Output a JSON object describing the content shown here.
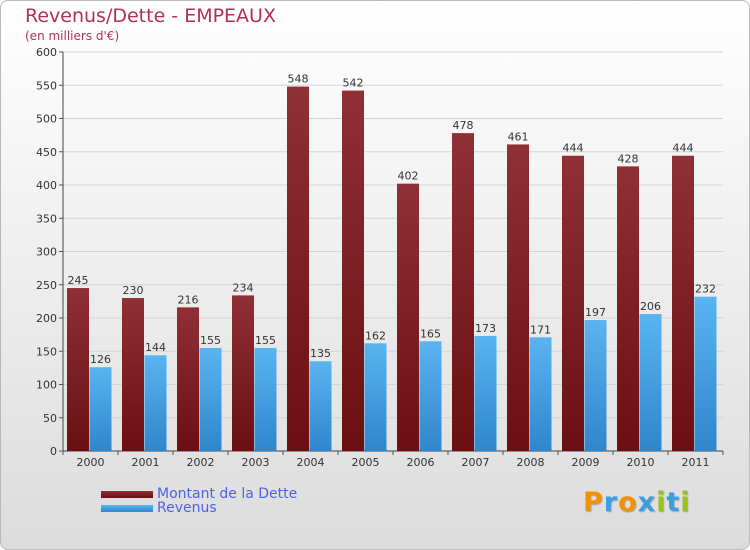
{
  "title": "Revenus/Dette - EMPEAUX",
  "subtitle": "(en milliers d'€)",
  "legend": {
    "dette": "Montant de la Dette",
    "revenus": "Revenus"
  },
  "logo": [
    "P",
    "r",
    "o",
    "x",
    "i",
    "t",
    "i"
  ],
  "colors": {
    "dette": "#6b0f13",
    "revenus": "#3a9ee6",
    "title": "#b0305a",
    "legend_text": "#4d62e6",
    "logo": [
      "#f29200",
      "#3a9ee6",
      "#f29200",
      "#3a9ee6",
      "#98c21f",
      "#3a9ee6",
      "#98c21f"
    ]
  },
  "chart_data": {
    "type": "bar",
    "title": "Revenus/Dette - EMPEAUX",
    "ylabel": "(en milliers d'€)",
    "xlabel": "",
    "categories": [
      "2000",
      "2001",
      "2002",
      "2003",
      "2004",
      "2005",
      "2006",
      "2007",
      "2008",
      "2009",
      "2010",
      "2011"
    ],
    "series": [
      {
        "name": "Montant de la Dette",
        "values": [
          245,
          230,
          216,
          234,
          548,
          542,
          402,
          478,
          461,
          444,
          428,
          444
        ]
      },
      {
        "name": "Revenus",
        "values": [
          126,
          144,
          155,
          155,
          135,
          162,
          165,
          173,
          171,
          197,
          206,
          232
        ]
      }
    ],
    "ylim": [
      0,
      600
    ],
    "yticks": [
      0,
      50,
      100,
      150,
      200,
      250,
      300,
      350,
      400,
      450,
      500,
      550,
      600
    ],
    "grid": true,
    "legend_position": "bottom-left"
  }
}
